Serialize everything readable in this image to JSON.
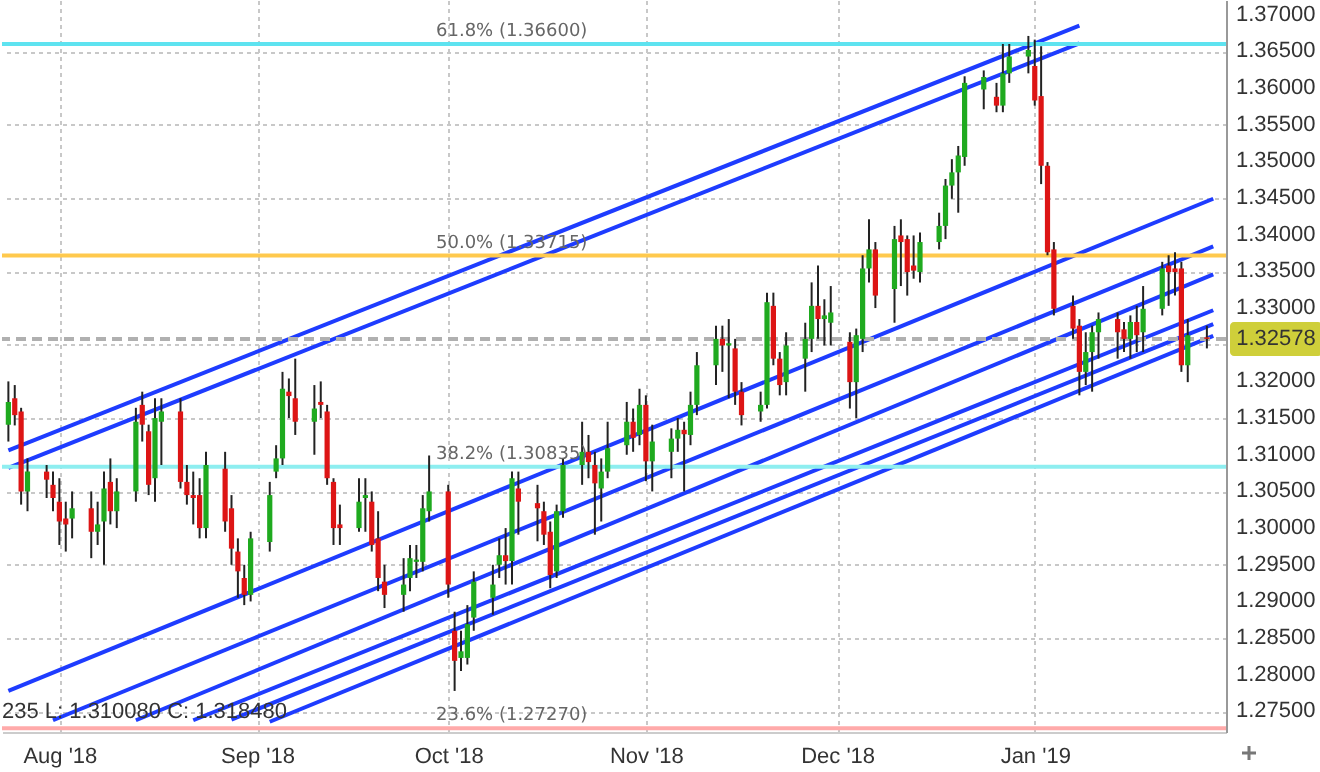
{
  "chart_data": {
    "type": "candlestick",
    "x": [
      "2018-07-24",
      "2018-07-25",
      "2018-07-26",
      "2018-07-27",
      "2018-07-30",
      "2018-07-31",
      "2018-08-01",
      "2018-08-02",
      "2018-08-03",
      "2018-08-06",
      "2018-08-07",
      "2018-08-08",
      "2018-08-09",
      "2018-08-10",
      "2018-08-13",
      "2018-08-14",
      "2018-08-15",
      "2018-08-16",
      "2018-08-17",
      "2018-08-20",
      "2018-08-21",
      "2018-08-22",
      "2018-08-23",
      "2018-08-24",
      "2018-08-27",
      "2018-08-28",
      "2018-08-29",
      "2018-08-30",
      "2018-08-31",
      "2018-09-03",
      "2018-09-04",
      "2018-09-05",
      "2018-09-06",
      "2018-09-07",
      "2018-09-10",
      "2018-09-11",
      "2018-09-12",
      "2018-09-13",
      "2018-09-14",
      "2018-09-17",
      "2018-09-18",
      "2018-09-19",
      "2018-09-20",
      "2018-09-21",
      "2018-09-24",
      "2018-09-25",
      "2018-09-26",
      "2018-09-27",
      "2018-09-28",
      "2018-10-01",
      "2018-10-02",
      "2018-10-03",
      "2018-10-04",
      "2018-10-05",
      "2018-10-08",
      "2018-10-09",
      "2018-10-10",
      "2018-10-11",
      "2018-10-12",
      "2018-10-15",
      "2018-10-16",
      "2018-10-17",
      "2018-10-18",
      "2018-10-19",
      "2018-10-22",
      "2018-10-23",
      "2018-10-24",
      "2018-10-25",
      "2018-10-26",
      "2018-10-29",
      "2018-10-30",
      "2018-10-31",
      "2018-11-01",
      "2018-11-02",
      "2018-11-05",
      "2018-11-06",
      "2018-11-07",
      "2018-11-08",
      "2018-11-09",
      "2018-11-12",
      "2018-11-13",
      "2018-11-14",
      "2018-11-15",
      "2018-11-16",
      "2018-11-19",
      "2018-11-20",
      "2018-11-21",
      "2018-11-22",
      "2018-11-23",
      "2018-11-26",
      "2018-11-27",
      "2018-11-28",
      "2018-11-29",
      "2018-11-30",
      "2018-12-03",
      "2018-12-04",
      "2018-12-05",
      "2018-12-06",
      "2018-12-07",
      "2018-12-10",
      "2018-12-11",
      "2018-12-12",
      "2018-12-13",
      "2018-12-14",
      "2018-12-17",
      "2018-12-18",
      "2018-12-19",
      "2018-12-20",
      "2018-12-21",
      "2018-12-24",
      "2018-12-26",
      "2018-12-27",
      "2018-12-28",
      "2018-12-31",
      "2019-01-01",
      "2019-01-02",
      "2019-01-03",
      "2019-01-04",
      "2019-01-07",
      "2019-01-08",
      "2019-01-09",
      "2019-01-10",
      "2019-01-11",
      "2019-01-14",
      "2019-01-15",
      "2019-01-16",
      "2019-01-17",
      "2019-01-18",
      "2019-01-21",
      "2019-01-22",
      "2019-01-23",
      "2019-01-24",
      "2019-01-25",
      "2019-01-28"
    ],
    "ohlc": [
      [
        1.3141,
        1.32,
        1.3118,
        1.3172
      ],
      [
        1.3177,
        1.3195,
        1.314,
        1.3154
      ],
      [
        1.3159,
        1.3164,
        1.3032,
        1.305
      ],
      [
        1.305,
        1.3095,
        1.3023,
        1.3077
      ],
      [
        1.3077,
        1.3086,
        1.3041,
        1.3066
      ],
      [
        1.3059,
        1.3077,
        1.3023,
        1.3041
      ],
      [
        1.3036,
        1.3068,
        1.2977,
        1.3009
      ],
      [
        1.3013,
        1.3036,
        1.2968,
        1.3005
      ],
      [
        1.3013,
        1.305,
        1.2986,
        1.3027
      ],
      [
        1.3027,
        1.305,
        1.2959,
        1.2995
      ],
      [
        1.2995,
        1.3036,
        1.2977,
        1.3005
      ],
      [
        1.3009,
        1.3077,
        1.295,
        1.3054
      ],
      [
        1.3063,
        1.3095,
        1.3005,
        1.3023
      ],
      [
        1.3023,
        1.3068,
        1.3,
        1.305
      ],
      [
        1.305,
        1.3164,
        1.3036,
        1.3145
      ],
      [
        1.3168,
        1.3186,
        1.3118,
        1.3141
      ],
      [
        1.3132,
        1.3141,
        1.3045,
        1.3059
      ],
      [
        1.3068,
        1.3177,
        1.3036,
        1.315
      ],
      [
        1.3145,
        1.3177,
        1.3086,
        1.3159
      ],
      [
        1.3159,
        1.3177,
        1.3054,
        1.3063
      ],
      [
        1.3063,
        1.3086,
        1.3032,
        1.3045
      ],
      [
        1.3045,
        1.3077,
        1.3005,
        1.3041
      ],
      [
        1.3045,
        1.3068,
        1.2986,
        1.3
      ],
      [
        1.3,
        1.3104,
        1.2986,
        1.3086
      ],
      [
        1.3081,
        1.3104,
        1.2995,
        1.3009
      ],
      [
        1.3027,
        1.3045,
        1.295,
        1.2972
      ],
      [
        1.2968,
        1.2986,
        1.2905,
        1.2941
      ],
      [
        1.2932,
        1.295,
        1.2895,
        1.2909
      ],
      [
        1.2909,
        1.2995,
        1.29,
        1.2986
      ],
      [
        1.2981,
        1.3063,
        1.2968,
        1.3045
      ],
      [
        1.3077,
        1.3113,
        1.3068,
        1.3095
      ],
      [
        1.3095,
        1.3213,
        1.3086,
        1.319
      ],
      [
        1.3186,
        1.3204,
        1.315,
        1.318
      ],
      [
        1.3177,
        1.3231,
        1.3127,
        1.3145
      ],
      [
        1.3145,
        1.3195,
        1.31,
        1.3163
      ],
      [
        1.3172,
        1.32,
        1.315,
        1.3168
      ],
      [
        1.3159,
        1.3168,
        1.3059,
        1.3068
      ],
      [
        1.3063,
        1.3068,
        1.2977,
        1.3
      ],
      [
        1.3005,
        1.3032,
        1.2977,
        1.3
      ],
      [
        1.3,
        1.3068,
        1.2995,
        1.3036
      ],
      [
        1.3041,
        1.3068,
        1.2995,
        1.3045
      ],
      [
        1.3036,
        1.305,
        1.2968,
        1.2977
      ],
      [
        1.2986,
        1.3023,
        1.2914,
        1.2932
      ],
      [
        1.2927,
        1.295,
        1.2891,
        1.2909
      ],
      [
        1.2909,
        1.2959,
        1.2886,
        1.2923
      ],
      [
        1.2932,
        1.2977,
        1.2914,
        1.2959
      ],
      [
        1.2954,
        1.2977,
        1.2932,
        1.2957
      ],
      [
        1.2954,
        1.3045,
        1.2941,
        1.3027
      ],
      [
        1.3023,
        1.3099,
        1.3009,
        1.305
      ],
      [
        1.305,
        1.3059,
        1.2905,
        1.2923
      ],
      [
        1.286,
        1.2886,
        1.2778,
        1.2819
      ],
      [
        1.2823,
        1.286,
        1.2805,
        1.2832
      ],
      [
        1.2823,
        1.2895,
        1.2814,
        1.2869
      ],
      [
        1.2878,
        1.2941,
        1.286,
        1.2927
      ],
      [
        1.2905,
        1.295,
        1.2882,
        1.2923
      ],
      [
        1.295,
        1.2986,
        1.2932,
        1.2963
      ],
      [
        1.2963,
        1.3,
        1.2923,
        1.2955
      ],
      [
        1.2955,
        1.3077,
        1.2923,
        1.3068
      ],
      [
        1.3054,
        1.3077,
        1.2991,
        1.3036
      ],
      [
        1.3034,
        1.3059,
        1.2982,
        1.3027
      ],
      [
        1.3023,
        1.3036,
        1.2977,
        1.2991
      ],
      [
        1.2995,
        1.3009,
        1.2918,
        1.2936
      ],
      [
        1.2941,
        1.3032,
        1.2932,
        1.3023
      ],
      [
        1.3023,
        1.3095,
        1.3014,
        1.3086
      ],
      [
        1.3086,
        1.3145,
        1.3059,
        1.3104
      ],
      [
        1.3104,
        1.3127,
        1.3068,
        1.309
      ],
      [
        1.3086,
        1.3104,
        1.2991,
        1.3061
      ],
      [
        1.3054,
        1.3095,
        1.3009,
        1.3077
      ],
      [
        1.3077,
        1.3145,
        1.3068,
        1.3109
      ],
      [
        1.3113,
        1.3172,
        1.31,
        1.3145
      ],
      [
        1.3145,
        1.3163,
        1.3104,
        1.3123
      ],
      [
        1.3127,
        1.319,
        1.3113,
        1.3168
      ],
      [
        1.3168,
        1.3181,
        1.3064,
        1.3091
      ],
      [
        1.3091,
        1.3141,
        1.305,
        1.3118
      ],
      [
        1.3104,
        1.3136,
        1.3068,
        1.3122
      ],
      [
        1.3122,
        1.315,
        1.3104,
        1.3134
      ],
      [
        1.3134,
        1.3145,
        1.305,
        1.3128
      ],
      [
        1.3127,
        1.3186,
        1.3113,
        1.3168
      ],
      [
        1.3168,
        1.324,
        1.3154,
        1.3222
      ],
      [
        1.3222,
        1.3276,
        1.3195,
        1.3258
      ],
      [
        1.3258,
        1.3276,
        1.3213,
        1.3249
      ],
      [
        1.3249,
        1.3285,
        1.3177,
        1.3252
      ],
      [
        1.3245,
        1.3258,
        1.3168,
        1.3186
      ],
      [
        1.3186,
        1.3199,
        1.314,
        1.3154
      ],
      [
        1.3159,
        1.3186,
        1.3145,
        1.3168
      ],
      [
        1.3168,
        1.3321,
        1.3163,
        1.3308
      ],
      [
        1.3303,
        1.3321,
        1.3222,
        1.3231
      ],
      [
        1.3231,
        1.324,
        1.3181,
        1.3195
      ],
      [
        1.3199,
        1.3267,
        1.3181,
        1.3249
      ],
      [
        1.3231,
        1.328,
        1.3186,
        1.3258
      ],
      [
        1.3258,
        1.3335,
        1.324,
        1.3303
      ],
      [
        1.3303,
        1.3358,
        1.3258,
        1.3285
      ],
      [
        1.3285,
        1.3312,
        1.3249,
        1.329
      ],
      [
        1.328,
        1.333,
        1.3249,
        1.3294
      ],
      [
        1.3254,
        1.3267,
        1.3163,
        1.3199
      ],
      [
        1.3199,
        1.3272,
        1.315,
        1.3263
      ],
      [
        1.3258,
        1.3372,
        1.324,
        1.3354
      ],
      [
        1.3354,
        1.3421,
        1.3335,
        1.338
      ],
      [
        1.338,
        1.339,
        1.33,
        1.3317
      ],
      [
        1.3326,
        1.3412,
        1.328,
        1.3394
      ],
      [
        1.3399,
        1.3421,
        1.333,
        1.339
      ],
      [
        1.3394,
        1.3399,
        1.3317,
        1.3349
      ],
      [
        1.3358,
        1.3399,
        1.334,
        1.3351
      ],
      [
        1.3349,
        1.3403,
        1.3335,
        1.339
      ],
      [
        1.339,
        1.343,
        1.338,
        1.3412
      ],
      [
        1.3412,
        1.3476,
        1.3394,
        1.3467
      ],
      [
        1.3467,
        1.3503,
        1.3449,
        1.3485
      ],
      [
        1.3485,
        1.3521,
        1.343,
        1.3508
      ],
      [
        1.3506,
        1.3616,
        1.3494,
        1.3607
      ],
      [
        1.3598,
        1.3624,
        1.3571,
        1.3615
      ],
      [
        1.3588,
        1.3607,
        1.3567,
        1.3576
      ],
      [
        1.3576,
        1.366,
        1.3567,
        1.362
      ],
      [
        1.362,
        1.366,
        1.3607,
        1.3643
      ],
      [
        1.3643,
        1.3671,
        1.362,
        1.3652
      ],
      [
        1.363,
        1.3666,
        1.3576,
        1.3583
      ],
      [
        1.3589,
        1.3657,
        1.3469,
        1.3494
      ],
      [
        1.3494,
        1.3499,
        1.3372,
        1.3376
      ],
      [
        1.338,
        1.339,
        1.329,
        1.3299
      ],
      [
        1.3303,
        1.3317,
        1.3258,
        1.3272
      ],
      [
        1.3276,
        1.3285,
        1.3181,
        1.3213
      ],
      [
        1.3213,
        1.3267,
        1.3195,
        1.324
      ],
      [
        1.324,
        1.3276,
        1.3186,
        1.3267
      ],
      [
        1.3267,
        1.3294,
        1.3231,
        1.3285
      ],
      [
        1.3285,
        1.3294,
        1.3231,
        1.3267
      ],
      [
        1.3271,
        1.3281,
        1.324,
        1.3258
      ],
      [
        1.3258,
        1.329,
        1.3231,
        1.3281
      ],
      [
        1.3281,
        1.3303,
        1.324,
        1.3263
      ],
      [
        1.3267,
        1.333,
        1.324,
        1.3299
      ],
      [
        1.3299,
        1.3363,
        1.329,
        1.3354
      ],
      [
        1.3358,
        1.3372,
        1.3303,
        1.3349
      ],
      [
        1.3354,
        1.3376,
        1.3317,
        1.3349
      ],
      [
        1.3354,
        1.3363,
        1.3213,
        1.3222
      ],
      [
        1.3222,
        1.3285,
        1.3199,
        1.3263
      ],
      [
        1.326,
        1.3276,
        1.3245,
        1.3258
      ]
    ],
    "series": [
      {
        "type": "line",
        "color": "#1e3cff",
        "x": [
          "2018-07-24",
          "2019-01-08"
        ],
        "values": [
          1.3106,
          1.3685
        ]
      },
      {
        "type": "line",
        "color": "#1e3cff",
        "x": [
          "2018-07-24",
          "2019-01-08"
        ],
        "values": [
          1.3082,
          1.3661
        ]
      },
      {
        "type": "line",
        "color": "#1e3cff",
        "x": [
          "2018-07-24",
          "2019-01-29"
        ],
        "values": [
          1.2778,
          1.3449
        ]
      },
      {
        "type": "line",
        "color": "#1e3cff",
        "x": [
          "2018-07-31",
          "2019-01-29"
        ],
        "values": [
          1.2738,
          1.3384
        ]
      },
      {
        "type": "line",
        "color": "#1e3cff",
        "x": [
          "2018-08-13",
          "2019-01-29"
        ],
        "values": [
          1.2738,
          1.3346
        ]
      },
      {
        "type": "line",
        "color": "#1e3cff",
        "x": [
          "2018-08-22",
          "2019-01-29"
        ],
        "values": [
          1.2738,
          1.3297
        ]
      },
      {
        "type": "line",
        "color": "#1e3cff",
        "x": [
          "2018-08-28",
          "2019-01-29"
        ],
        "values": [
          1.2739,
          1.3278
        ]
      },
      {
        "type": "line",
        "color": "#1e3cff",
        "x": [
          "2018-09-03",
          "2019-01-29"
        ],
        "values": [
          1.2736,
          1.3262
        ]
      }
    ],
    "xlim": [
      "2018-07-23",
      "2019-01-31"
    ],
    "ylim": [
      1.2722,
      1.372
    ],
    "yticks": [
      {
        "value": 1.275,
        "label": "1.27500"
      },
      {
        "value": 1.28,
        "label": "1.28000"
      },
      {
        "value": 1.285,
        "label": "1.28500"
      },
      {
        "value": 1.29,
        "label": "1.29000"
      },
      {
        "value": 1.295,
        "label": "1.29500"
      },
      {
        "value": 1.3,
        "label": "1.30000"
      },
      {
        "value": 1.305,
        "label": "1.30500"
      },
      {
        "value": 1.31,
        "label": "1.31000"
      },
      {
        "value": 1.315,
        "label": "1.31500"
      },
      {
        "value": 1.32,
        "label": "1.32000"
      },
      {
        "value": 1.325,
        "label": null
      },
      {
        "value": 1.33,
        "label": "1.33000"
      },
      {
        "value": 1.335,
        "label": "1.33500"
      },
      {
        "value": 1.34,
        "label": "1.34000"
      },
      {
        "value": 1.345,
        "label": "1.34500"
      },
      {
        "value": 1.35,
        "label": "1.35000"
      },
      {
        "value": 1.355,
        "label": "1.35500"
      },
      {
        "value": 1.36,
        "label": "1.36000"
      },
      {
        "value": 1.365,
        "label": "1.36500"
      },
      {
        "value": 1.37,
        "label": "1.37000"
      }
    ],
    "xticks": [
      {
        "value": "2018-08-01",
        "label": "Aug '18"
      },
      {
        "value": "2018-09-01",
        "label": "Sep '18"
      },
      {
        "value": "2018-10-01",
        "label": "Oct '18"
      },
      {
        "value": "2018-11-01",
        "label": "Nov '18"
      },
      {
        "value": "2018-12-01",
        "label": "Dec '18"
      },
      {
        "value": "2019-01-01",
        "label": "Jan '19"
      }
    ],
    "ref_lines": [
      {
        "axis": "y",
        "value": 1.366,
        "label": "61.8% (1.36600)",
        "color": "#5ee3f0"
      },
      {
        "axis": "y",
        "value": 1.33715,
        "label": "50.0% (1.33715)",
        "color": "#ffc94d"
      },
      {
        "axis": "y",
        "value": 1.30835,
        "label": "38.2% (1.30835)",
        "color": "#8eeef0"
      },
      {
        "axis": "y",
        "value": 1.2727,
        "label": "23.6% (1.27270)",
        "color": "#ffaaaa"
      },
      {
        "axis": "y",
        "value": 1.32578,
        "label": "1.32578",
        "color": "#b0b0b0",
        "line_style": "dashed"
      }
    ],
    "annotations": [
      "235 L: 1.310080 C: 1.318480"
    ],
    "grid": true
  }
}
